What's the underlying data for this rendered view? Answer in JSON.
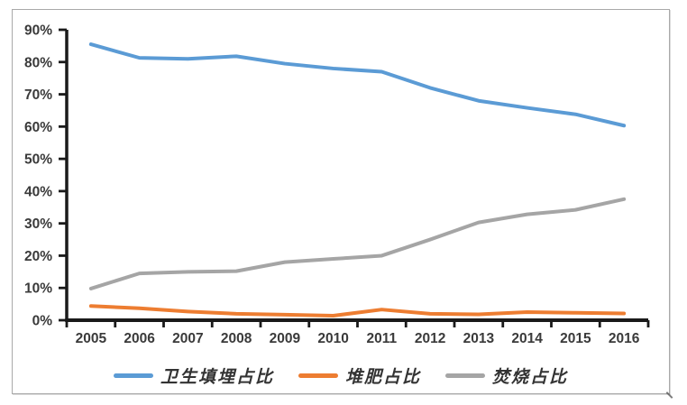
{
  "chart_data": {
    "type": "line",
    "title": "",
    "xlabel": "",
    "ylabel": "",
    "x": [
      "2005",
      "2006",
      "2007",
      "2008",
      "2009",
      "2010",
      "2011",
      "2012",
      "2013",
      "2014",
      "2015",
      "2016"
    ],
    "yticks": [
      "0%",
      "10%",
      "20%",
      "30%",
      "40%",
      "50%",
      "60%",
      "70%",
      "80%",
      "90%"
    ],
    "ylim": [
      0,
      90
    ],
    "grid": false,
    "legend_position": "bottom",
    "axis_color": "#1a1a1a",
    "label_color": "#3a3a3a",
    "series": [
      {
        "name": "卫生填埋占比",
        "color": "#5B9BD5",
        "values": [
          85.5,
          81.3,
          81.0,
          81.8,
          79.5,
          78.0,
          77.0,
          72.0,
          68.0,
          65.8,
          63.8,
          60.3
        ]
      },
      {
        "name": "堆肥占比",
        "color": "#ED7D31",
        "values": [
          4.4,
          3.7,
          2.7,
          2.0,
          1.7,
          1.4,
          3.3,
          2.0,
          1.8,
          2.5,
          2.3,
          2.1
        ]
      },
      {
        "name": "焚烧占比",
        "color": "#A5A5A5",
        "values": [
          9.8,
          14.5,
          15.0,
          15.2,
          18.0,
          19.0,
          20.0,
          25.0,
          30.3,
          32.8,
          34.2,
          37.5
        ]
      }
    ]
  }
}
